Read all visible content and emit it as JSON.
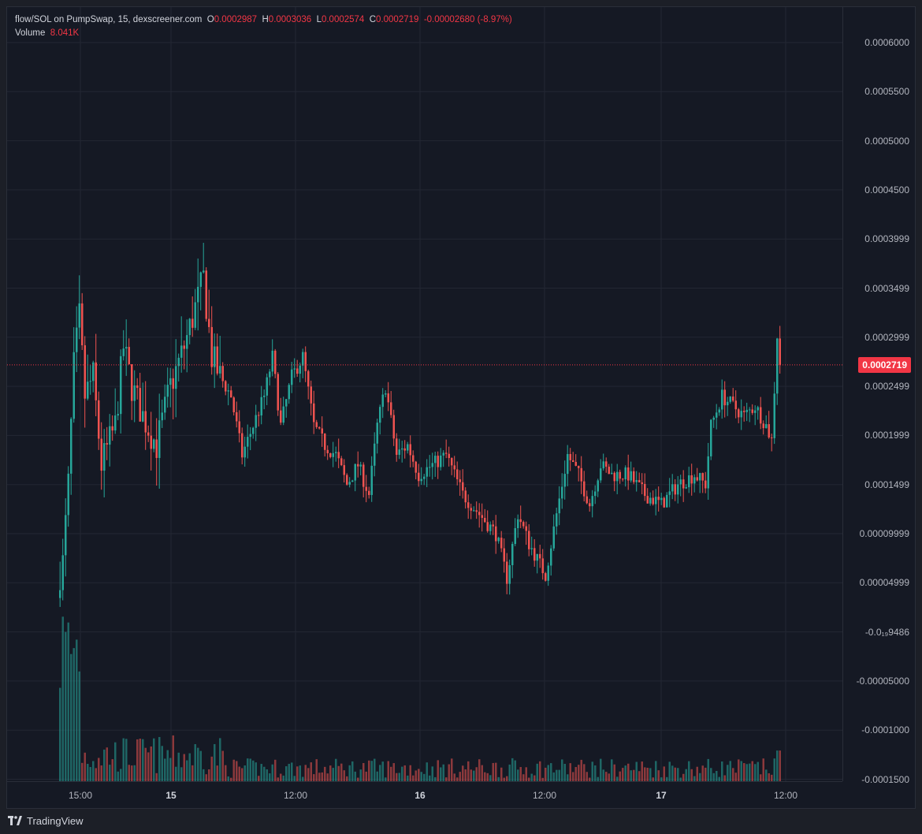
{
  "legend": {
    "symbol": "flow/SOL on PumpSwap, 15, dexscreener.com",
    "o_key": "O",
    "o": "0.0002987",
    "h_key": "H",
    "h": "0.0003036",
    "l_key": "L",
    "l": "0.0002574",
    "c_key": "C",
    "c": "0.0002719",
    "change": "-0.00002680 (-8.97%)",
    "volume_key": "Volume",
    "volume": "8.041K"
  },
  "price_axis": {
    "labels": [
      "0.0006000",
      "0.0005500",
      "0.0005000",
      "0.0004500",
      "0.0003999",
      "0.0003499",
      "0.0002999",
      "0.0002499",
      "0.0001999",
      "0.0001499",
      "0.00009999",
      "0.00004999",
      "-0.0₁₉9486",
      "-0.00005000",
      "-0.0001000",
      "-0.0001500"
    ],
    "last_price": "0.0002719"
  },
  "time_axis": {
    "labels": [
      {
        "text": "15:00",
        "bold": false
      },
      {
        "text": "15",
        "bold": true
      },
      {
        "text": "12:00",
        "bold": false
      },
      {
        "text": "16",
        "bold": true
      },
      {
        "text": "12:00",
        "bold": false
      },
      {
        "text": "17",
        "bold": true
      },
      {
        "text": "12:00",
        "bold": false
      }
    ]
  },
  "footer": {
    "brand": "TradingView"
  },
  "colors": {
    "up": "#26a69a",
    "down": "#ef5350",
    "grid": "#232733",
    "background": "#151924",
    "last_price": "#f23645"
  },
  "chart_data": {
    "type": "candlestick",
    "title": "flow/SOL on PumpSwap, 15, dexscreener.com",
    "interval_minutes": 15,
    "y_unit": "SOL",
    "ylim": [
      -0.00015,
      0.0006
    ],
    "x_ticks": [
      "15:00",
      "15",
      "12:00",
      "16",
      "12:00",
      "17",
      "12:00"
    ],
    "last_price": 0.0002719,
    "grid": true,
    "price_path_keypoints": [
      {
        "bar": 0,
        "price": 6e-05
      },
      {
        "bar": 1,
        "price": 7e-05
      },
      {
        "bar": 3,
        "price": 0.00015
      },
      {
        "bar": 5,
        "price": 0.00027
      },
      {
        "bar": 7,
        "price": 0.00032
      },
      {
        "bar": 9,
        "price": 0.00024
      },
      {
        "bar": 12,
        "price": 0.00026
      },
      {
        "bar": 15,
        "price": 0.00017
      },
      {
        "bar": 20,
        "price": 0.00021
      },
      {
        "bar": 23,
        "price": 0.00029
      },
      {
        "bar": 26,
        "price": 0.00025
      },
      {
        "bar": 30,
        "price": 0.00022
      },
      {
        "bar": 35,
        "price": 0.00019
      },
      {
        "bar": 40,
        "price": 0.00025
      },
      {
        "bar": 45,
        "price": 0.00029
      },
      {
        "bar": 48,
        "price": 0.00032
      },
      {
        "bar": 52,
        "price": 0.00036
      },
      {
        "bar": 55,
        "price": 0.00028
      },
      {
        "bar": 58,
        "price": 0.00026
      },
      {
        "bar": 62,
        "price": 0.00024
      },
      {
        "bar": 66,
        "price": 0.00018
      },
      {
        "bar": 70,
        "price": 0.00021
      },
      {
        "bar": 74,
        "price": 0.00024
      },
      {
        "bar": 77,
        "price": 0.00028
      },
      {
        "bar": 80,
        "price": 0.00021
      },
      {
        "bar": 84,
        "price": 0.00026
      },
      {
        "bar": 88,
        "price": 0.00028
      },
      {
        "bar": 92,
        "price": 0.00021
      },
      {
        "bar": 96,
        "price": 0.00019
      },
      {
        "bar": 100,
        "price": 0.00018
      },
      {
        "bar": 104,
        "price": 0.00015
      },
      {
        "bar": 108,
        "price": 0.00017
      },
      {
        "bar": 112,
        "price": 0.00014
      },
      {
        "bar": 115,
        "price": 0.00021
      },
      {
        "bar": 118,
        "price": 0.00025
      },
      {
        "bar": 122,
        "price": 0.00018
      },
      {
        "bar": 126,
        "price": 0.00019
      },
      {
        "bar": 130,
        "price": 0.00016
      },
      {
        "bar": 135,
        "price": 0.00017
      },
      {
        "bar": 140,
        "price": 0.00018
      },
      {
        "bar": 146,
        "price": 0.00014
      },
      {
        "bar": 152,
        "price": 0.00012
      },
      {
        "bar": 158,
        "price": 0.0001
      },
      {
        "bar": 162,
        "price": 5.5e-05
      },
      {
        "bar": 166,
        "price": 0.00012
      },
      {
        "bar": 170,
        "price": 9e-05
      },
      {
        "bar": 176,
        "price": 5.8e-05
      },
      {
        "bar": 180,
        "price": 0.00012
      },
      {
        "bar": 184,
        "price": 0.00018
      },
      {
        "bar": 188,
        "price": 0.00016
      },
      {
        "bar": 192,
        "price": 0.00013
      },
      {
        "bar": 196,
        "price": 0.00017
      },
      {
        "bar": 200,
        "price": 0.00016
      },
      {
        "bar": 206,
        "price": 0.00016
      },
      {
        "bar": 212,
        "price": 0.00014
      },
      {
        "bar": 218,
        "price": 0.00013
      },
      {
        "bar": 224,
        "price": 0.00015
      },
      {
        "bar": 230,
        "price": 0.00016
      },
      {
        "bar": 234,
        "price": 0.00015
      },
      {
        "bar": 236,
        "price": 0.00021
      },
      {
        "bar": 240,
        "price": 0.00024
      },
      {
        "bar": 244,
        "price": 0.00023
      },
      {
        "bar": 248,
        "price": 0.00022
      },
      {
        "bar": 252,
        "price": 0.00023
      },
      {
        "bar": 256,
        "price": 0.00021
      },
      {
        "bar": 258,
        "price": 0.000195
      },
      {
        "bar": 260,
        "price": 0.0002987
      },
      {
        "bar": 261,
        "price": 0.0002719
      }
    ],
    "volume_profile": {
      "early_bars_max": 9000,
      "later_bars_typical": 1500
    }
  }
}
